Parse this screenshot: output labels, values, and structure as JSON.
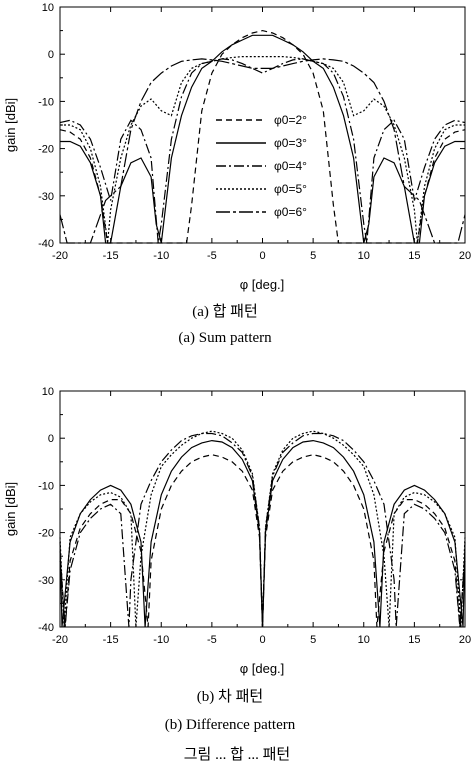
{
  "figure_caption_partial": "그림 ... 합 ... 패턴",
  "chart_data": [
    {
      "type": "line",
      "caption_ko": "(a) 합 패턴",
      "caption_en": "(a) Sum pattern",
      "xlabel": "φ [deg.]",
      "ylabel": "gain [dBi]",
      "xlim": [
        -20,
        20
      ],
      "ylim": [
        -40,
        10
      ],
      "xticks": [
        -20,
        -15,
        -10,
        -5,
        0,
        5,
        10,
        15,
        20
      ],
      "yticks": [
        10,
        0,
        -10,
        -20,
        -30,
        -40
      ],
      "legend_position": "center-right",
      "grid": false,
      "series": [
        {
          "name": "φ0=2°",
          "dash": "6,4",
          "x": [
            -20,
            -19,
            -18,
            -17,
            -16,
            -15.3,
            -15,
            -14,
            -13,
            -12,
            -11,
            -10,
            -9,
            -8,
            -7.5,
            -7,
            -6,
            -5,
            -4,
            -3,
            -2,
            -1,
            0,
            1,
            2,
            3,
            4,
            5,
            6,
            7,
            7.5,
            8,
            9,
            10,
            11,
            12,
            13,
            14,
            15,
            15.3,
            16,
            17,
            18,
            19,
            20
          ],
          "y": [
            -16,
            -16.5,
            -18,
            -22,
            -30,
            -40,
            -40,
            -40,
            -40,
            -40,
            -40,
            -40,
            -40,
            -40,
            -40,
            -32,
            -12,
            -4,
            0,
            2,
            3.5,
            4.5,
            5,
            4.5,
            3.5,
            2,
            0,
            -4,
            -12,
            -32,
            -40,
            -40,
            -40,
            -40,
            -40,
            -40,
            -40,
            -40,
            -40,
            -40,
            -30,
            -22,
            -18,
            -16.5,
            -16
          ]
        },
        {
          "name": "φ0=3°",
          "dash": "",
          "x": [
            -20,
            -19,
            -18,
            -17,
            -16,
            -15.5,
            -15,
            -14,
            -13,
            -12,
            -11,
            -10.5,
            -10,
            -9,
            -8,
            -7,
            -6,
            -5,
            -4,
            -3,
            -2,
            -1,
            0,
            1,
            2,
            3,
            4,
            5,
            6,
            7,
            8,
            9,
            10,
            10.5,
            11,
            12,
            13,
            14,
            15,
            15.5,
            16,
            17,
            18,
            19,
            20
          ],
          "y": [
            -18.5,
            -18.5,
            -19.5,
            -23,
            -30,
            -40,
            -40,
            -28,
            -23,
            -22,
            -26,
            -36,
            -40,
            -22,
            -13,
            -7,
            -3,
            -1.5,
            0.5,
            2,
            3,
            4,
            4,
            4,
            3,
            2,
            0.5,
            -1.5,
            -3,
            -7,
            -13,
            -22,
            -40,
            -36,
            -26,
            -22,
            -23,
            -28,
            -40,
            -40,
            -30,
            -23,
            -19.5,
            -18.5,
            -18.5
          ]
        },
        {
          "name": "φ0=4°",
          "dash": "10,3,2,3",
          "x": [
            -20,
            -19,
            -18,
            -17,
            -16,
            -15,
            -14,
            -13,
            -12,
            -11,
            -10.3,
            -10,
            -9,
            -8,
            -7,
            -6,
            -5,
            -4,
            -3,
            -2,
            -1,
            0,
            1,
            2,
            3,
            4,
            5,
            6,
            7,
            8,
            9,
            10,
            10.3,
            11,
            12,
            13,
            14,
            15,
            16,
            17,
            18,
            19,
            20
          ],
          "y": [
            -14.5,
            -14,
            -15,
            -18,
            -24,
            -31,
            -18,
            -14,
            -16,
            -22,
            -40,
            -36,
            -18,
            -9,
            -4,
            -2,
            -1.5,
            -1,
            -1.2,
            -2,
            -3,
            -4,
            -3,
            -2,
            -1.2,
            -1,
            -1.5,
            -2,
            -4,
            -9,
            -18,
            -36,
            -40,
            -22,
            -16,
            -14,
            -18,
            -31,
            -24,
            -18,
            -15,
            -14,
            -14.5
          ]
        },
        {
          "name": "φ0=5°",
          "dash": "2,2",
          "x": [
            -20,
            -19,
            -18,
            -17,
            -16,
            -15.3,
            -15,
            -14,
            -13,
            -12,
            -11,
            -10,
            -9,
            -8,
            -7,
            -6,
            -5,
            -4,
            -3,
            -2,
            -1,
            0,
            1,
            2,
            3,
            4,
            5,
            6,
            7,
            8,
            9,
            10,
            11,
            12,
            13,
            14,
            15,
            15.3,
            16,
            17,
            18,
            19,
            20
          ],
          "y": [
            -15,
            -15,
            -16,
            -20,
            -28,
            -40,
            -33,
            -22,
            -15,
            -11,
            -9.5,
            -12,
            -13,
            -6,
            -3,
            -2,
            -1.5,
            -1,
            -0.7,
            -0.5,
            -0.5,
            -0.5,
            -0.5,
            -0.5,
            -0.7,
            -1,
            -1.5,
            -2,
            -3,
            -6,
            -13,
            -12,
            -9.5,
            -11,
            -15,
            -22,
            -33,
            -40,
            -28,
            -20,
            -16,
            -15,
            -15
          ]
        },
        {
          "name": "φ0=6°",
          "dash": "14,3,3,3",
          "x": [
            -20,
            -19.3,
            -19,
            -18,
            -17,
            -16,
            -15.5,
            -15,
            -14,
            -13,
            -12,
            -11,
            -10,
            -9,
            -8,
            -7,
            -6,
            -5,
            -4,
            -3,
            -2,
            -1,
            0,
            1,
            2,
            3,
            4,
            5,
            6,
            7,
            8,
            9,
            10,
            11,
            12,
            13,
            14,
            15,
            15.5,
            16,
            17,
            18,
            19,
            19.3,
            20
          ],
          "y": [
            -34,
            -40,
            -40,
            -40,
            -40,
            -34,
            -31,
            -30,
            -28,
            -16,
            -10,
            -6,
            -4,
            -2.5,
            -1.5,
            -1.2,
            -1,
            -1.2,
            -1.5,
            -2,
            -2.5,
            -3,
            -3,
            -3,
            -2.5,
            -2,
            -1.5,
            -1.2,
            -1,
            -1.2,
            -1.5,
            -2.5,
            -4,
            -6,
            -10,
            -16,
            -28,
            -30,
            -31,
            -34,
            -40,
            -40,
            -40,
            -40,
            -34
          ]
        }
      ]
    },
    {
      "type": "line",
      "caption_ko": "(b) 차 패턴",
      "caption_en": "(b) Difference pattern",
      "xlabel": "φ [deg.]",
      "ylabel": "gain [dBi]",
      "xlim": [
        -20,
        20
      ],
      "ylim": [
        -40,
        10
      ],
      "xticks": [
        -20,
        -15,
        -10,
        -5,
        0,
        5,
        10,
        15,
        20
      ],
      "yticks": [
        10,
        0,
        -10,
        -20,
        -30,
        -40
      ],
      "grid": false,
      "series": [
        {
          "dash": "",
          "x": [
            -20,
            -19.8,
            -19,
            -18,
            -17,
            -16,
            -15,
            -14,
            -13,
            -12,
            -11.6,
            -11,
            -10,
            -9,
            -8,
            -7,
            -6,
            -5,
            -4,
            -3,
            -2,
            -1,
            -0.3,
            0,
            0.3,
            1,
            2,
            3,
            4,
            5,
            6,
            7,
            8,
            9,
            10,
            11,
            11.6,
            12,
            13,
            14,
            15,
            16,
            17,
            18,
            19,
            19.8,
            20
          ],
          "y": [
            -22,
            -40,
            -22,
            -16,
            -13,
            -11,
            -10,
            -11,
            -14,
            -22,
            -40,
            -22,
            -12,
            -7,
            -4,
            -2,
            -1,
            -0.5,
            -0.8,
            -2,
            -4.5,
            -9,
            -20,
            -40,
            -20,
            -9,
            -4.5,
            -2,
            -0.8,
            -0.5,
            -1,
            -2,
            -4,
            -7,
            -12,
            -22,
            -40,
            -22,
            -14,
            -11,
            -10,
            -11,
            -13,
            -16,
            -22,
            -40,
            -22
          ]
        },
        {
          "dash": "6,4",
          "x": [
            -20,
            -19.5,
            -19,
            -18,
            -17,
            -16,
            -15,
            -14,
            -13,
            -12,
            -11.3,
            -11,
            -10,
            -9,
            -8,
            -7,
            -6,
            -5,
            -4,
            -3,
            -2,
            -1,
            -0.3,
            0,
            0.3,
            1,
            2,
            3,
            4,
            5,
            6,
            7,
            8,
            9,
            10,
            11,
            11.3,
            12,
            13,
            14,
            15,
            16,
            17,
            18,
            19,
            19.5,
            20
          ],
          "y": [
            -24,
            -40,
            -26,
            -19,
            -16,
            -14,
            -13,
            -13,
            -16,
            -24,
            -40,
            -26,
            -15,
            -10,
            -7,
            -5,
            -4,
            -3.5,
            -4,
            -5,
            -7,
            -11,
            -21,
            -40,
            -21,
            -11,
            -7,
            -5,
            -4,
            -3.5,
            -4,
            -5,
            -7,
            -10,
            -15,
            -26,
            -40,
            -24,
            -16,
            -13,
            -13,
            -14,
            -16,
            -19,
            -26,
            -40,
            -24
          ]
        },
        {
          "dash": "2,2",
          "x": [
            -20,
            -19.6,
            -19,
            -18,
            -17,
            -16,
            -15,
            -14,
            -13,
            -12.5,
            -12,
            -11,
            -10,
            -9,
            -8,
            -7,
            -6,
            -5,
            -4,
            -3,
            -2,
            -1,
            -0.3,
            0,
            0.3,
            1,
            2,
            3,
            4,
            5,
            6,
            7,
            8,
            9,
            10,
            11,
            12,
            12.5,
            13,
            14,
            15,
            16,
            17,
            18,
            19,
            19.6,
            20
          ],
          "y": [
            -21,
            -40,
            -21,
            -16,
            -13.5,
            -12,
            -11.5,
            -12.5,
            -16,
            -40,
            -25,
            -12,
            -6,
            -3.5,
            -1.5,
            0,
            1,
            1.5,
            1,
            0,
            -2.5,
            -7.5,
            -19,
            -40,
            -19,
            -7.5,
            -2.5,
            0,
            1,
            1.5,
            1,
            0,
            -1.5,
            -3.5,
            -6,
            -12,
            -25,
            -40,
            -16,
            -12.5,
            -11.5,
            -12,
            -13.5,
            -16,
            -21,
            -40,
            -21
          ]
        },
        {
          "dash": "10,3,2,3",
          "x": [
            -20,
            -19.5,
            -19,
            -18,
            -17,
            -16,
            -15,
            -14,
            -13.2,
            -13,
            -12,
            -11,
            -10,
            -9,
            -8,
            -7,
            -6,
            -5,
            -4,
            -3,
            -2,
            -1,
            -0.3,
            0,
            0.3,
            1,
            2,
            3,
            4,
            5,
            6,
            7,
            8,
            9,
            10,
            11,
            12,
            13,
            13.2,
            14,
            15,
            16,
            17,
            18,
            19,
            19.5,
            20
          ],
          "y": [
            -26,
            -40,
            -28,
            -20,
            -17,
            -15,
            -14,
            -16,
            -40,
            -30,
            -14,
            -9,
            -5,
            -2.5,
            -0.5,
            0.5,
            1,
            1,
            0.5,
            -1,
            -3,
            -8,
            -19,
            -40,
            -19,
            -8,
            -3,
            -1,
            0.5,
            1,
            1,
            0.5,
            -0.5,
            -2.5,
            -5,
            -9,
            -14,
            -30,
            -40,
            -16,
            -14,
            -15,
            -17,
            -20,
            -28,
            -40,
            -26
          ]
        }
      ]
    }
  ]
}
